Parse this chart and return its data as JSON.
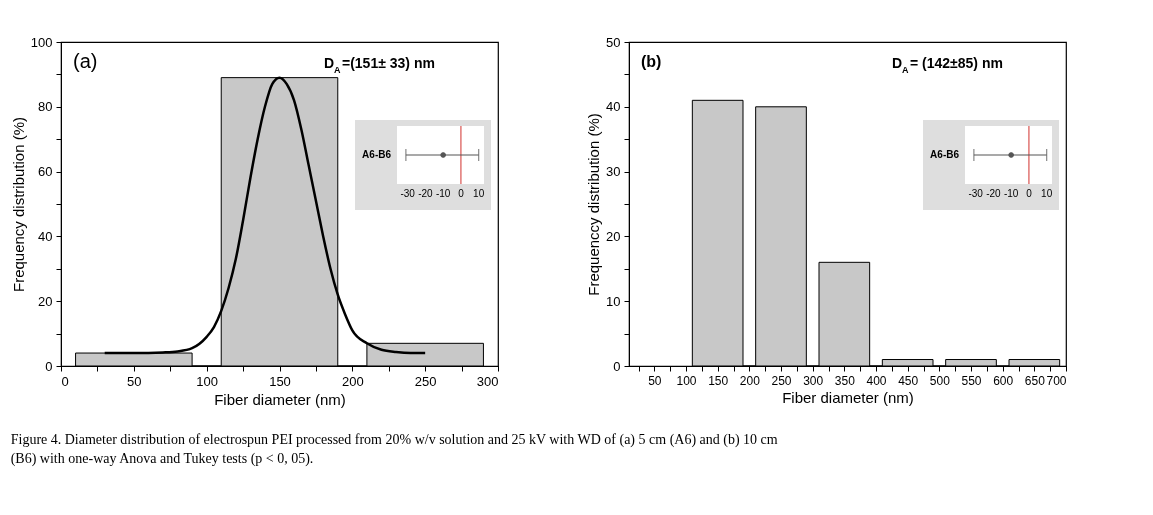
{
  "chart_data": [
    {
      "type": "histogram",
      "bins": [
        10,
        90,
        110,
        190,
        210,
        290
      ],
      "values": [
        4,
        0,
        89,
        0,
        7
      ],
      "color": "#c8c8c8",
      "series": [
        {
          "type": "line",
          "color": "#000000",
          "x": [
            30,
            50,
            70,
            80,
            90,
            100,
            105,
            110,
            115,
            120,
            125,
            130,
            135,
            140,
            145,
            150,
            155,
            160,
            165,
            170,
            175,
            180,
            185,
            190,
            195,
            200,
            210,
            220,
            230,
            240,
            250
          ],
          "values": [
            4,
            4,
            4.2,
            4.5,
            5.5,
            9,
            12,
            17,
            24,
            33,
            45,
            58,
            70,
            80,
            87,
            89,
            87,
            82,
            73,
            62,
            51,
            40,
            30,
            22,
            16,
            11,
            7,
            5,
            4.3,
            4,
            4
          ]
        }
      ],
      "xlabel": "Fiber diameter (nm)",
      "ylabel": "Frequency distribution (%)",
      "xlim": [
        0,
        300
      ],
      "xticks": [
        0,
        {
          "value": 25,
          "label": null
        },
        50,
        {
          "value": 75,
          "label": null
        },
        100,
        {
          "value": 125,
          "label": null
        },
        150,
        {
          "value": 175,
          "label": null
        },
        200,
        {
          "value": 225,
          "label": null
        },
        250,
        {
          "value": 275,
          "label": null
        },
        300
      ],
      "ylim": [
        0,
        100
      ],
      "yticks": [
        0,
        {
          "value": 10,
          "label": null
        },
        20,
        {
          "value": 30,
          "label": null
        },
        40,
        {
          "value": 50,
          "label": null
        },
        60,
        {
          "value": 70,
          "label": null
        },
        80,
        {
          "value": 90,
          "label": null
        },
        100
      ],
      "grid": false,
      "legend": false,
      "annotations": [
        "(a)",
        "D$_{A}$=(151± 33) nm",
        "Figure 4. Diameter distribution of electrospun PEI processed from 20% w/v solution and 25 kV with WD of (a) 5 cm (A6) and (b) 10 cm (B6) with one-way Anova and Tukey tests (p < 0, 05)."
      ]
    },
    {
      "type": "scatter",
      "orientation": "horizontal",
      "categories": [
        "A6-B6"
      ],
      "values": [
        -10
      ],
      "errors": [
        [
          -31,
          10
        ]
      ],
      "color": "#555555",
      "marker": "circle",
      "xlim": [
        -36,
        13
      ],
      "xticks": [
        -30,
        -20,
        -10,
        0,
        10
      ],
      "grid": false,
      "ref_lines": [
        {
          "axis": "x",
          "value": 0,
          "color": "#d9534f"
        }
      ]
    },
    {
      "type": "histogram",
      "bins": [
        110,
        190,
        210,
        290,
        310,
        390,
        410,
        490,
        510,
        590,
        610,
        690
      ],
      "values": [
        41,
        0,
        40,
        0,
        16,
        0,
        1,
        0,
        1,
        0,
        1
      ],
      "color": "#c8c8c8",
      "xlabel": "Fiber diameter (nm)",
      "ylabel": "Frequenccy distribution (%)",
      "xlim": [
        10,
        700
      ],
      "xticks": [
        {
          "value": 25,
          "label": null
        },
        50,
        {
          "value": 75,
          "label": null
        },
        100,
        {
          "value": 125,
          "label": null
        },
        150,
        {
          "value": 175,
          "label": null
        },
        200,
        {
          "value": 225,
          "label": null
        },
        250,
        {
          "value": 275,
          "label": null
        },
        300,
        {
          "value": 325,
          "label": null
        },
        350,
        {
          "value": 375,
          "label": null
        },
        400,
        {
          "value": 425,
          "label": null
        },
        450,
        {
          "value": 475,
          "label": null
        },
        500,
        {
          "value": 525,
          "label": null
        },
        550,
        {
          "value": 575,
          "label": null
        },
        600,
        {
          "value": 625,
          "label": null
        },
        650,
        {
          "value": 675,
          "label": null
        },
        700
      ],
      "ylim": [
        0,
        50
      ],
      "yticks": [
        0,
        {
          "value": 5,
          "label": null
        },
        10,
        {
          "value": 15,
          "label": null
        },
        20,
        {
          "value": 25,
          "label": null
        },
        30,
        {
          "value": 35,
          "label": null
        },
        40,
        {
          "value": 45,
          "label": null
        },
        50
      ],
      "grid": false,
      "legend": false,
      "annotations": [
        "(b)",
        "D$_{A}$= (142±85) nm"
      ]
    },
    {
      "type": "scatter",
      "orientation": "horizontal",
      "categories": [
        "A6-B6"
      ],
      "values": [
        -10
      ],
      "errors": [
        [
          -31,
          10
        ]
      ],
      "color": "#555555",
      "marker": "circle",
      "xlim": [
        -36,
        13
      ],
      "xticks": [
        -30,
        -20,
        -10,
        0,
        10
      ],
      "grid": false,
      "ref_lines": [
        {
          "axis": "x",
          "value": 0,
          "color": "#d9534f"
        }
      ]
    }
  ]
}
